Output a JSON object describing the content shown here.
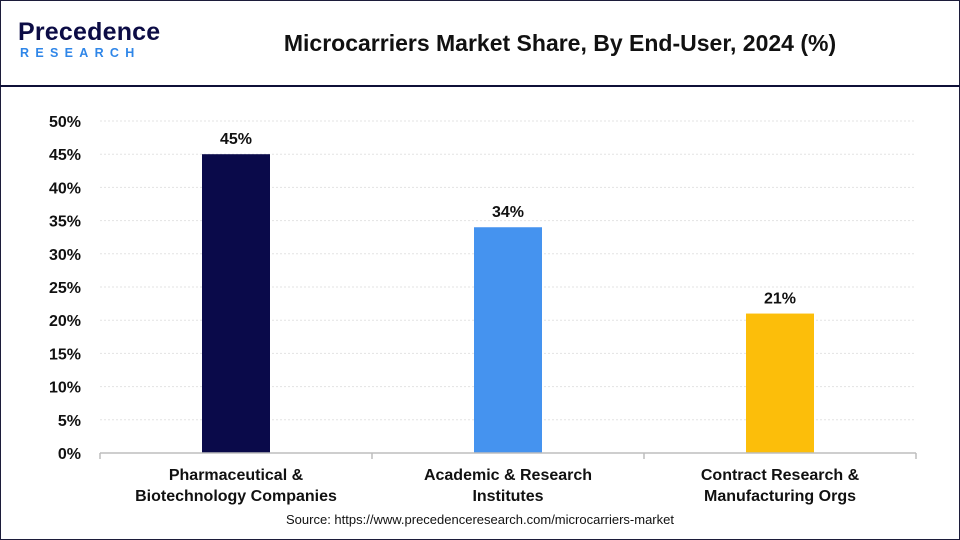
{
  "header": {
    "logo_word": "Precedence",
    "logo_sub": "RESEARCH",
    "title": "Microcarriers Market Share, By End-User, 2024 (%)"
  },
  "colors": {
    "navy": "#0a0a4a",
    "blue": "#4593ef",
    "yellow": "#fcbe0a",
    "logo_blue": "#2f86e8"
  },
  "chart_data": {
    "type": "bar",
    "title": "Microcarriers Market Share, By End-User, 2024 (%)",
    "categories": [
      [
        "Pharmaceutical &",
        "Biotechnology Companies"
      ],
      [
        "Academic & Research",
        "Institutes"
      ],
      [
        "Contract Research &",
        "Manufacturing Orgs"
      ]
    ],
    "values": [
      45,
      34,
      21
    ],
    "data_labels": [
      "45%",
      "34%",
      "21%"
    ],
    "bar_colors": [
      "#0a0a4a",
      "#4593ef",
      "#fcbe0a"
    ],
    "ylim": [
      0,
      50
    ],
    "yticks": [
      0,
      5,
      10,
      15,
      20,
      25,
      30,
      35,
      40,
      45,
      50
    ],
    "ytick_labels": [
      "0%",
      "5%",
      "10%",
      "15%",
      "20%",
      "25%",
      "30%",
      "35%",
      "40%",
      "45%",
      "50%"
    ],
    "grid": true,
    "legend": "none"
  },
  "footer": {
    "source": "Source: https://www.precedenceresearch.com/microcarriers-market"
  }
}
